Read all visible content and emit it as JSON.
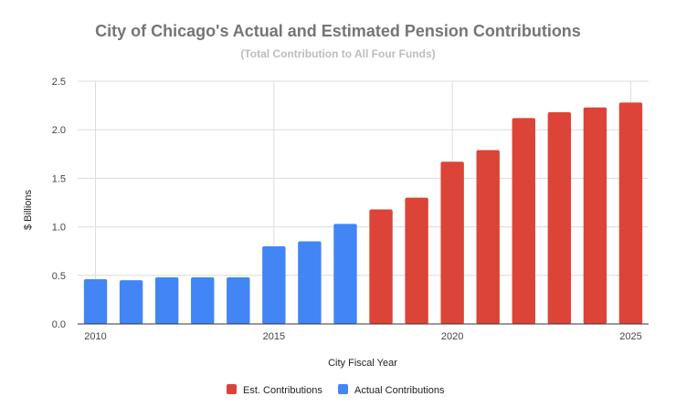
{
  "chart_data": {
    "type": "bar",
    "title": "City of Chicago's Actual and Estimated Pension Contributions",
    "subtitle": "(Total Contribution to All Four Funds)",
    "xlabel": "City Fiscal Year",
    "ylabel": "$ Billions",
    "ylim": [
      0,
      2.5
    ],
    "yticks": [
      "0.0",
      "0.5",
      "1.0",
      "1.5",
      "2.0",
      "2.5"
    ],
    "xticks": [
      2010,
      2015,
      2020,
      2025
    ],
    "x": [
      2010,
      2011,
      2012,
      2013,
      2014,
      2015,
      2016,
      2017,
      2018,
      2019,
      2020,
      2021,
      2022,
      2023,
      2024,
      2025
    ],
    "series": [
      {
        "name": "Est. Contributions",
        "color": "#db4437",
        "values": [
          null,
          null,
          null,
          null,
          null,
          null,
          null,
          null,
          1.18,
          1.3,
          1.67,
          1.79,
          2.12,
          2.18,
          2.23,
          2.28
        ]
      },
      {
        "name": "Actual Contributions",
        "color": "#4285f4",
        "values": [
          0.46,
          0.45,
          0.48,
          0.48,
          0.48,
          0.8,
          0.85,
          1.03,
          null,
          null,
          null,
          null,
          null,
          null,
          null,
          null
        ]
      }
    ],
    "grid": true,
    "legend": "bottom"
  }
}
